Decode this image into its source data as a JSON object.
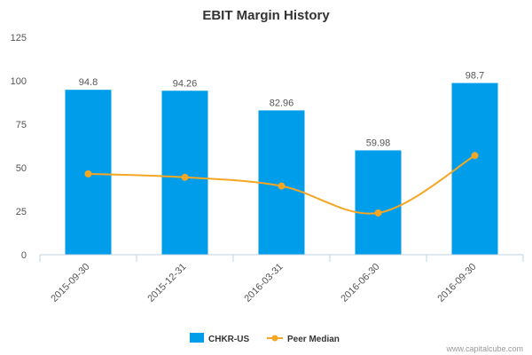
{
  "chart_data": {
    "type": "bar",
    "title": "EBIT Margin History",
    "categories": [
      "2015-09-30",
      "2015-12-31",
      "2016-03-31",
      "2016-06-30",
      "2016-09-30"
    ],
    "series": [
      {
        "name": "CHKR-US",
        "type": "bar",
        "color": "#009EEA",
        "values": [
          94.8,
          94.26,
          82.96,
          59.98,
          98.7
        ],
        "labels": [
          "94.8",
          "94.26",
          "82.96",
          "59.98",
          "98.7"
        ]
      },
      {
        "name": "Peer Median",
        "type": "line",
        "color": "#F5A623",
        "values": [
          46.5,
          44.5,
          39.5,
          24.0,
          57.0
        ]
      }
    ],
    "ylim": [
      0,
      125
    ],
    "yticks": [
      "0",
      "25",
      "50",
      "75",
      "100",
      "125"
    ],
    "xlabel": "",
    "ylabel": "",
    "grid": false,
    "legend_position": "bottom"
  },
  "credit": "www.capitalcube.com"
}
